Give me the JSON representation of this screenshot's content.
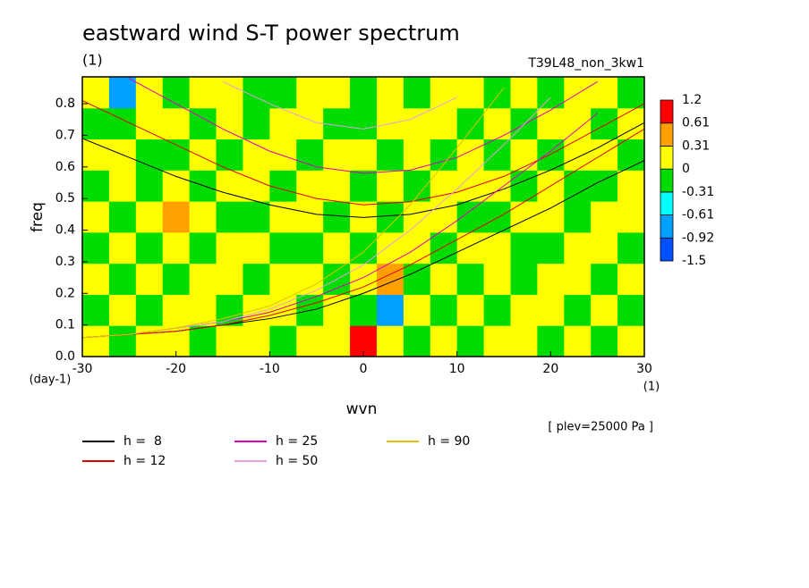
{
  "chart_data": {
    "type": "contour",
    "title": "eastward wind S-T power spectrum",
    "subtitle": "(1)",
    "run_label": "T39L48_non_3kw1",
    "ylabel": "freq",
    "yunit": "(day-1)",
    "xlabel": "wvn",
    "xunit": "(1)",
    "annotation": "[ plev=25000 Pa ]",
    "xlim": [
      -30,
      30
    ],
    "ylim": [
      0,
      0.885
    ],
    "xticks": [
      -30,
      -20,
      -10,
      {
        "value": 0,
        "label": "0"
      },
      10,
      20,
      30
    ],
    "yticks": [
      {
        "value": 0,
        "label": "0.0"
      },
      0.1,
      0.2,
      0.3,
      0.4,
      0.5,
      0.6,
      0.7,
      0.8
    ],
    "levels": [
      -1.5,
      -0.92,
      -0.61,
      -0.31,
      0,
      0.31,
      0.61,
      1.2
    ],
    "level_colors": [
      "#0050ff",
      "#00a0ff",
      "#00ffff",
      "#00dc00",
      "#ffff00",
      "#ffa000",
      "#ff0000"
    ],
    "z": [
      [
        0.15,
        -0.15,
        0.2,
        0.15,
        -0.1,
        0.2,
        0.15,
        -0.15,
        0.2,
        0.1,
        0.9,
        0.2,
        -0.15,
        0.15,
        -0.2,
        0.15,
        0.2,
        -0.15,
        0.15,
        -0.1,
        0.2
      ],
      [
        -0.15,
        0.2,
        -0.1,
        0.15,
        0.2,
        -0.15,
        0.1,
        0.2,
        -0.2,
        0.15,
        -0.15,
        -0.7,
        0.2,
        -0.15,
        0.15,
        -0.2,
        0.1,
        0.15,
        -0.2,
        0.15,
        -0.15
      ],
      [
        0.2,
        -0.15,
        0.15,
        -0.2,
        0.15,
        0.1,
        -0.2,
        0.15,
        0.2,
        -0.15,
        0.2,
        0.35,
        -0.15,
        0.2,
        -0.1,
        0.15,
        -0.2,
        0.2,
        0.15,
        -0.15,
        0.2
      ],
      [
        -0.1,
        0.15,
        -0.2,
        0.2,
        -0.15,
        0.2,
        0.15,
        -0.1,
        -0.15,
        0.2,
        -0.2,
        0.15,
        0.2,
        -0.15,
        0.2,
        0.15,
        -0.15,
        -0.2,
        0.15,
        0.2,
        -0.15
      ],
      [
        0.15,
        -0.2,
        0.15,
        0.35,
        0.15,
        -0.15,
        -0.2,
        0.2,
        0.15,
        -0.15,
        0.15,
        -0.2,
        0.15,
        0.1,
        -0.15,
        -0.2,
        0.2,
        0.15,
        -0.15,
        0.2,
        0.15
      ],
      [
        -0.2,
        0.15,
        -0.15,
        0.15,
        -0.2,
        0.2,
        0.15,
        -0.15,
        0.2,
        0.15,
        -0.2,
        0.2,
        -0.15,
        0.2,
        0.15,
        0.2,
        -0.15,
        0.2,
        -0.2,
        -0.15,
        0.2
      ],
      [
        0.15,
        0.2,
        -0.15,
        -0.2,
        0.15,
        -0.15,
        0.2,
        0.15,
        -0.2,
        0.2,
        0.15,
        -0.15,
        0.2,
        -0.2,
        0.15,
        -0.15,
        0.15,
        -0.2,
        0.15,
        0.2,
        -0.15
      ],
      [
        -0.15,
        -0.2,
        0.2,
        0.15,
        -0.15,
        0.2,
        -0.2,
        0.2,
        0.15,
        -0.15,
        -0.2,
        0.15,
        0.2,
        0.15,
        -0.2,
        0.2,
        -0.15,
        0.15,
        0.2,
        -0.15,
        0.15
      ],
      [
        0.2,
        -0.7,
        0.15,
        -0.15,
        0.2,
        0.15,
        -0.15,
        -0.2,
        0.15,
        0.2,
        -0.15,
        0.2,
        -0.15,
        0.15,
        0.2,
        -0.15,
        0.2,
        -0.2,
        0.15,
        0.2,
        -0.15
      ]
    ],
    "x": [
      -30,
      -25,
      -20,
      -15,
      -10,
      -5,
      0,
      5,
      10,
      15,
      20,
      25,
      30
    ],
    "series": [
      {
        "name": "h =  8",
        "color": "#000000",
        "curves": [
          [
            0.69,
            0.63,
            0.57,
            0.52,
            0.48,
            0.45,
            0.44,
            0.45,
            0.48,
            0.53,
            0.59,
            0.66,
            0.74
          ],
          [
            0.06,
            0.07,
            0.08,
            0.1,
            0.12,
            0.15,
            0.2,
            0.26,
            0.33,
            0.4,
            0.47,
            0.55,
            0.62
          ]
        ]
      },
      {
        "name": "h = 12",
        "color": "#e00000",
        "curves": [
          [
            0.81,
            0.74,
            0.67,
            0.6,
            0.54,
            0.5,
            0.48,
            0.49,
            0.52,
            0.57,
            0.64,
            0.72,
            0.8
          ],
          [
            0.06,
            0.07,
            0.08,
            0.1,
            0.13,
            0.17,
            0.22,
            0.29,
            0.37,
            0.45,
            0.54,
            0.63,
            0.72
          ]
        ]
      },
      {
        "name": "h = 25",
        "color": "#e000c0",
        "curves": [
          [
            null,
            0.88,
            0.8,
            0.72,
            0.65,
            0.6,
            0.58,
            0.59,
            0.63,
            0.7,
            0.78,
            0.87,
            null
          ],
          [
            0.06,
            0.07,
            0.09,
            0.11,
            0.14,
            0.19,
            0.25,
            0.33,
            0.43,
            0.54,
            0.65,
            0.77,
            null
          ]
        ]
      },
      {
        "name": "h = 50",
        "color": "#e0a0e0",
        "curves": [
          [
            null,
            null,
            null,
            0.87,
            0.8,
            0.74,
            0.72,
            0.75,
            0.82,
            null,
            null,
            null,
            null
          ],
          [
            0.06,
            0.07,
            0.09,
            0.11,
            0.15,
            0.21,
            0.29,
            0.4,
            0.53,
            0.67,
            0.82,
            null,
            null
          ]
        ]
      },
      {
        "name": "h = 90",
        "color": "#e0c000",
        "curves": [
          [
            0.06,
            0.07,
            0.09,
            0.12,
            0.16,
            0.23,
            0.33,
            0.48,
            0.66,
            0.85,
            null,
            null,
            null
          ]
        ]
      }
    ]
  }
}
